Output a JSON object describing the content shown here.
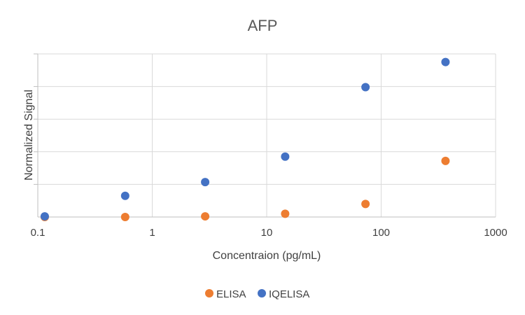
{
  "chart_data": {
    "type": "scatter",
    "title": "AFP",
    "xlabel": "Concentraion (pg/mL)",
    "ylabel": "Normalized Signal",
    "x_scale": "log",
    "xlim": [
      0.1,
      1000
    ],
    "ylim": [
      0,
      5
    ],
    "x_ticks": [
      "0.1",
      "1",
      "10",
      "100",
      "1000"
    ],
    "y_ticks_labeled": false,
    "grid": true,
    "legend_position": "bottom",
    "series": [
      {
        "name": "ELISA",
        "color": "#ED7D31",
        "points": [
          {
            "x": 0.115,
            "y": 0.0
          },
          {
            "x": 0.58,
            "y": 0.0
          },
          {
            "x": 2.9,
            "y": 0.02
          },
          {
            "x": 14.5,
            "y": 0.1
          },
          {
            "x": 73,
            "y": 0.4
          },
          {
            "x": 365,
            "y": 1.72
          }
        ]
      },
      {
        "name": "IQELISA",
        "color": "#4472C4",
        "points": [
          {
            "x": 0.115,
            "y": 0.02
          },
          {
            "x": 0.58,
            "y": 0.65
          },
          {
            "x": 2.9,
            "y": 1.07
          },
          {
            "x": 14.5,
            "y": 1.85
          },
          {
            "x": 73,
            "y": 3.98
          },
          {
            "x": 365,
            "y": 4.75
          }
        ]
      }
    ]
  }
}
